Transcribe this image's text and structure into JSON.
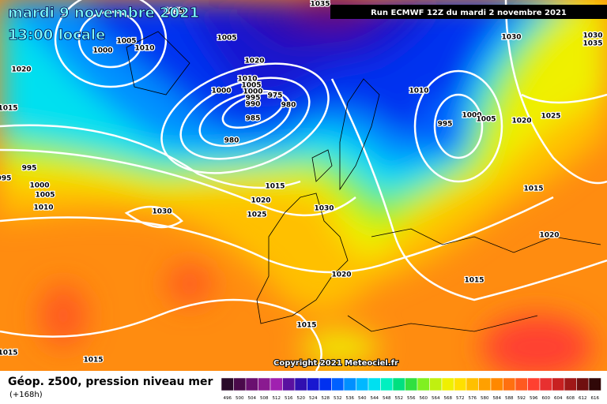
{
  "header": {
    "date": "mardi 9 novembre 2021",
    "time": "13:00 locale",
    "run": "Run ECMWF 12Z du mardi 2 novembre 2021"
  },
  "copyright": "Copyright 2021 Meteociel.fr",
  "footer": {
    "title": "Géop. z500, pression niveau mer",
    "lead": "(+168h)"
  },
  "isobar_labels": [
    "1015",
    "1005",
    "1000",
    "1010",
    "1005",
    "1020",
    "1020",
    "1015",
    "1010",
    "1005",
    "1000",
    "1000",
    "995",
    "990",
    "975",
    "980",
    "985",
    "980",
    "995",
    "995",
    "1000",
    "1005",
    "1010",
    "1015",
    "1020",
    "1025",
    "1030",
    "1030",
    "1010",
    "995",
    "1000",
    "1005",
    "1020",
    "1025",
    "1030",
    "1030",
    "1035",
    "1015",
    "1020",
    "1015",
    "1020",
    "1015",
    "1015",
    "1015",
    "1035"
  ],
  "scale": {
    "values": [
      496,
      500,
      504,
      508,
      512,
      516,
      520,
      524,
      528,
      532,
      536,
      540,
      544,
      548,
      552,
      556,
      560,
      564,
      568,
      572,
      576,
      580,
      584,
      588,
      592,
      596,
      600,
      604,
      608,
      612,
      616
    ],
    "colors": [
      "#2a0a2a",
      "#4a0a4a",
      "#6a1070",
      "#8a1a90",
      "#a020b0",
      "#5a10a0",
      "#3010b0",
      "#1818d0",
      "#0030f0",
      "#0060ff",
      "#0090ff",
      "#00b8ff",
      "#00e0f0",
      "#00f0c0",
      "#00e080",
      "#30e040",
      "#80f020",
      "#c0f010",
      "#f0f000",
      "#ffe000",
      "#ffc000",
      "#ffa000",
      "#ff8800",
      "#ff7010",
      "#ff5a20",
      "#ff4030",
      "#e83030",
      "#c82020",
      "#a01818",
      "#701010",
      "#300808"
    ]
  }
}
